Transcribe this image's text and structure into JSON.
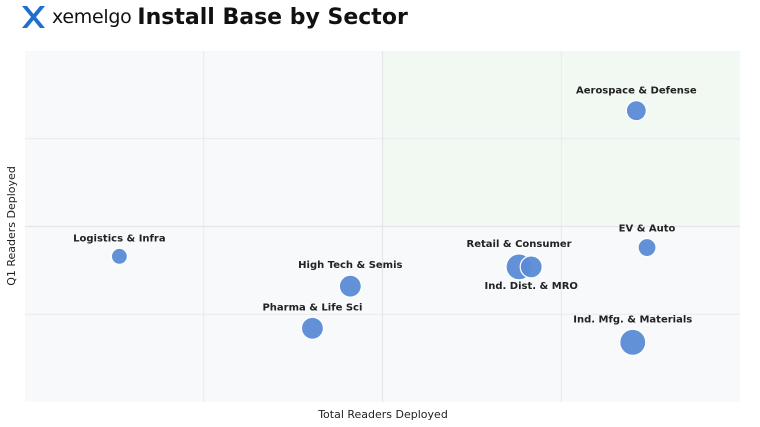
{
  "header": {
    "logo_text": "xemelgo",
    "title": "Install Base by Sector"
  },
  "colors": {
    "bubble": "#5b8bd6",
    "quadrant_highlight": "#f2f9f3",
    "plot_bg": "#f8f9fb",
    "grid": "#e3e6ea",
    "logo": "#1f6fd1"
  },
  "chart_data": {
    "type": "scatter",
    "title": "Install Base by Sector",
    "xlabel": "Total Readers Deployed",
    "ylabel": "Q1 Readers Deployed",
    "xlim": [
      0,
      100
    ],
    "ylim": [
      0,
      100
    ],
    "grid": true,
    "points": [
      {
        "name": "Aerospace & Defense",
        "x": 85.5,
        "y": 83,
        "size": 10,
        "label_pos": "above"
      },
      {
        "name": "Logistics & Infra",
        "x": 13.2,
        "y": 41.5,
        "size": 8,
        "label_pos": "above"
      },
      {
        "name": "EV & Auto",
        "x": 87,
        "y": 44,
        "size": 9,
        "label_pos": "above"
      },
      {
        "name": "Retail & Consumer",
        "x": 69.1,
        "y": 38.5,
        "size": 13,
        "label_pos": "above"
      },
      {
        "name": "Ind. Dist. & MRO",
        "x": 70.8,
        "y": 38.5,
        "size": 11,
        "label_pos": "below"
      },
      {
        "name": "High Tech & Semis",
        "x": 45.5,
        "y": 33,
        "size": 11,
        "label_pos": "above"
      },
      {
        "name": "Pharma & Life Sci",
        "x": 40.2,
        "y": 21,
        "size": 11,
        "label_pos": "above"
      },
      {
        "name": "Ind. Mfg. & Materials",
        "x": 85,
        "y": 17,
        "size": 13,
        "label_pos": "above"
      }
    ]
  }
}
